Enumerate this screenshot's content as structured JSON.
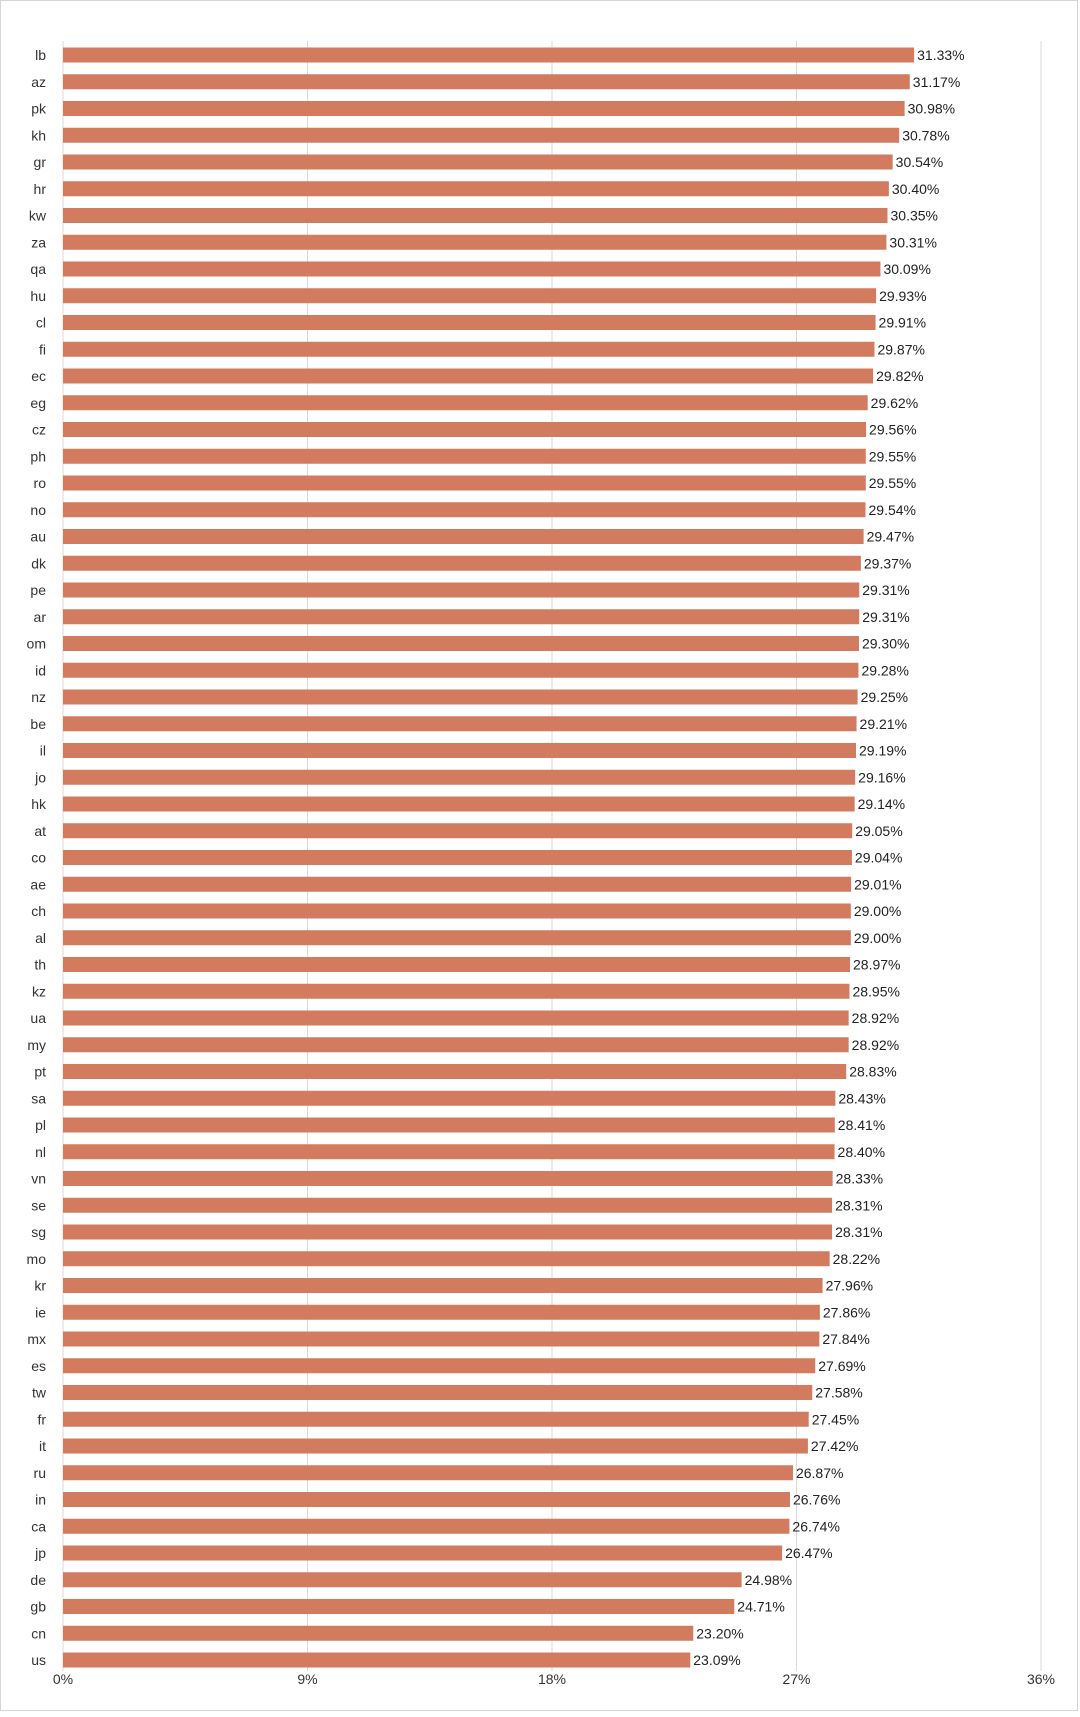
{
  "chart_data": {
    "type": "bar",
    "orientation": "horizontal",
    "title": "",
    "xlabel": "",
    "ylabel": "",
    "xlim": [
      0,
      36
    ],
    "x_ticks": [
      "0%",
      "9%",
      "18%",
      "27%",
      "36%"
    ],
    "grid": "vertical",
    "legend": "none",
    "bar_color": "#d27b5f",
    "grid_color": "#d9d9d9",
    "categories": [
      "lb",
      "az",
      "pk",
      "kh",
      "gr",
      "hr",
      "kw",
      "za",
      "qa",
      "hu",
      "cl",
      "fi",
      "ec",
      "eg",
      "cz",
      "ph",
      "ro",
      "no",
      "au",
      "dk",
      "pe",
      "ar",
      "om",
      "id",
      "nz",
      "be",
      "il",
      "jo",
      "hk",
      "at",
      "co",
      "ae",
      "ch",
      "al",
      "th",
      "kz",
      "ua",
      "my",
      "pt",
      "sa",
      "pl",
      "nl",
      "vn",
      "se",
      "sg",
      "mo",
      "kr",
      "ie",
      "mx",
      "es",
      "tw",
      "fr",
      "it",
      "ru",
      "in",
      "ca",
      "jp",
      "de",
      "gb",
      "cn",
      "us"
    ],
    "values": [
      31.33,
      31.17,
      30.98,
      30.78,
      30.54,
      30.4,
      30.35,
      30.31,
      30.09,
      29.93,
      29.91,
      29.87,
      29.82,
      29.62,
      29.56,
      29.55,
      29.55,
      29.54,
      29.47,
      29.37,
      29.31,
      29.31,
      29.3,
      29.28,
      29.25,
      29.21,
      29.19,
      29.16,
      29.14,
      29.05,
      29.04,
      29.01,
      29.0,
      29.0,
      28.97,
      28.95,
      28.92,
      28.92,
      28.83,
      28.43,
      28.41,
      28.4,
      28.33,
      28.31,
      28.31,
      28.22,
      27.96,
      27.86,
      27.84,
      27.69,
      27.58,
      27.45,
      27.42,
      26.87,
      26.76,
      26.74,
      26.47,
      24.98,
      24.71,
      23.2,
      23.09
    ],
    "data_labels": [
      "31.33%",
      "31.17%",
      "30.98%",
      "30.78%",
      "30.54%",
      "30.40%",
      "30.35%",
      "30.31%",
      "30.09%",
      "29.93%",
      "29.91%",
      "29.87%",
      "29.82%",
      "29.62%",
      "29.56%",
      "29.55%",
      "29.55%",
      "29.54%",
      "29.47%",
      "29.37%",
      "29.31%",
      "29.31%",
      "29.30%",
      "29.28%",
      "29.25%",
      "29.21%",
      "29.19%",
      "29.16%",
      "29.14%",
      "29.05%",
      "29.04%",
      "29.01%",
      "29.00%",
      "29.00%",
      "28.97%",
      "28.95%",
      "28.92%",
      "28.92%",
      "28.83%",
      "28.43%",
      "28.41%",
      "28.40%",
      "28.33%",
      "28.31%",
      "28.31%",
      "28.22%",
      "27.96%",
      "27.86%",
      "27.84%",
      "27.69%",
      "27.58%",
      "27.45%",
      "27.42%",
      "26.87%",
      "26.76%",
      "26.74%",
      "26.47%",
      "24.98%",
      "24.71%",
      "23.20%",
      "23.09%"
    ]
  }
}
